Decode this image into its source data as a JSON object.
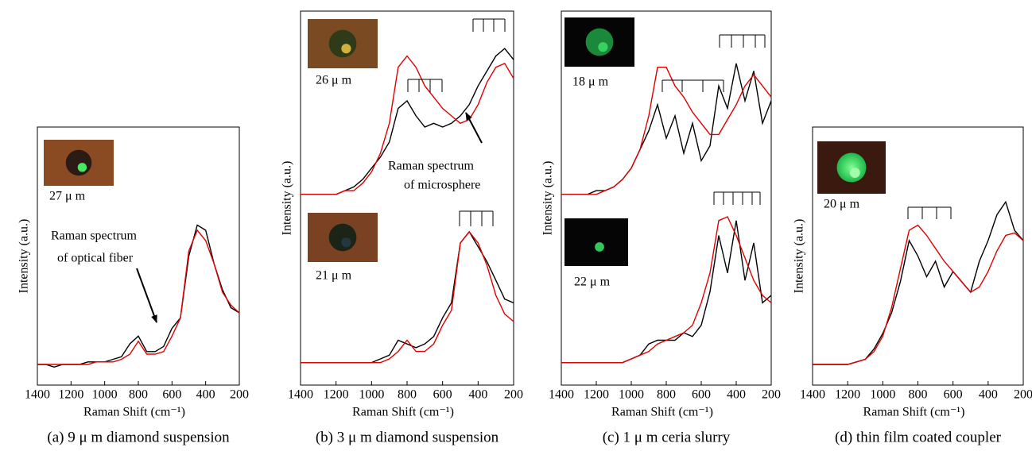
{
  "chart_data": [
    {
      "type": "line",
      "caption": "(a) 9 μ m diamond suspension",
      "xlabel": "Raman Shift (cm⁻¹)",
      "ylabel": "Intensity (a.u.)",
      "xlim": [
        1400,
        200
      ],
      "xticks": [
        1400,
        1200,
        1000,
        800,
        600,
        400,
        200
      ],
      "ylim": [
        0,
        100
      ],
      "x": [
        1400,
        1350,
        1300,
        1250,
        1200,
        1150,
        1100,
        1050,
        1000,
        950,
        900,
        850,
        800,
        750,
        700,
        650,
        600,
        550,
        500,
        450,
        400,
        350,
        300,
        250,
        200
      ],
      "series": [
        {
          "color": "#000000",
          "values": [
            8,
            8,
            7,
            8,
            8,
            8,
            9,
            9,
            9,
            10,
            11,
            16,
            19,
            13,
            13,
            15,
            22,
            26,
            50,
            62,
            60,
            47,
            37,
            30,
            28
          ]
        },
        {
          "color": "#e00000",
          "values": [
            8,
            8,
            8,
            8,
            8,
            8,
            8,
            9,
            9,
            9,
            10,
            12,
            17,
            12,
            12,
            13,
            19,
            26,
            52,
            60,
            56,
            47,
            36,
            31,
            28
          ]
        }
      ],
      "insets": [
        "27 μ m"
      ],
      "annotations": [
        "Raman spectrum",
        "of optical fiber"
      ]
    },
    {
      "type": "line",
      "caption": "(b) 3 μ m diamond suspension",
      "xlabel": "Raman Shift (cm⁻¹)",
      "ylabel": "Intensity (a.u.)",
      "xlim": [
        1400,
        200
      ],
      "xticks": [
        1400,
        1200,
        1000,
        800,
        600,
        400,
        200
      ],
      "ylim": [
        0,
        100
      ],
      "x": [
        1400,
        1350,
        1300,
        1250,
        1200,
        1150,
        1100,
        1050,
        1000,
        950,
        900,
        850,
        800,
        750,
        700,
        650,
        600,
        550,
        500,
        450,
        400,
        350,
        300,
        250,
        200
      ],
      "series": [
        {
          "color": "#000000",
          "values": [
            51,
            51,
            51,
            51,
            51,
            52,
            53,
            55,
            58,
            61,
            65,
            74,
            76,
            72,
            69,
            70,
            69,
            70,
            72,
            75,
            80,
            84,
            88,
            90,
            87
          ]
        },
        {
          "color": "#e00000",
          "values": [
            51,
            51,
            51,
            51,
            51,
            52,
            52,
            54,
            57,
            62,
            70,
            85,
            88,
            85,
            80,
            77,
            74,
            72,
            70,
            71,
            75,
            81,
            85,
            86,
            82
          ]
        },
        {
          "color": "#000000",
          "values": [
            6,
            6,
            6,
            6,
            6,
            6,
            6,
            6,
            6,
            7,
            8,
            12,
            11,
            10,
            11,
            13,
            18,
            22,
            38,
            41,
            37,
            33,
            28,
            23,
            22
          ]
        },
        {
          "color": "#e00000",
          "values": [
            6,
            6,
            6,
            6,
            6,
            6,
            6,
            6,
            6,
            6,
            7,
            9,
            12,
            9,
            9,
            11,
            16,
            20,
            38,
            41,
            38,
            32,
            24,
            19,
            17
          ]
        }
      ],
      "insets": [
        "26 μ m",
        "21 μ m"
      ],
      "annotations": [
        "Raman  spectrum",
        "of microsphere"
      ]
    },
    {
      "type": "line",
      "caption": "(c)  1 μ m ceria slurry",
      "xlabel": "Raman Shift (cm⁻¹)",
      "ylabel": "Intensity (a.u.)",
      "xlim": [
        1400,
        200
      ],
      "xticks": [
        1400,
        1200,
        1000,
        800,
        600,
        400,
        200
      ],
      "ylim": [
        0,
        100
      ],
      "x": [
        1400,
        1350,
        1300,
        1250,
        1200,
        1150,
        1100,
        1050,
        1000,
        950,
        900,
        850,
        800,
        750,
        700,
        650,
        600,
        550,
        500,
        450,
        400,
        350,
        300,
        250,
        200
      ],
      "series": [
        {
          "color": "#000000",
          "values": [
            51,
            51,
            51,
            51,
            52,
            52,
            53,
            55,
            58,
            63,
            68,
            75,
            66,
            72,
            62,
            70,
            60,
            64,
            80,
            74,
            86,
            76,
            84,
            70,
            76
          ]
        },
        {
          "color": "#e00000",
          "values": [
            51,
            51,
            51,
            51,
            51,
            52,
            53,
            55,
            58,
            63,
            72,
            85,
            85,
            80,
            77,
            73,
            70,
            67,
            67,
            71,
            75,
            80,
            83,
            80,
            77
          ]
        },
        {
          "color": "#000000",
          "values": [
            6,
            6,
            6,
            6,
            6,
            6,
            6,
            6,
            7,
            8,
            11,
            12,
            12,
            12,
            14,
            13,
            16,
            25,
            40,
            30,
            44,
            28,
            38,
            22,
            24
          ]
        },
        {
          "color": "#e00000",
          "values": [
            6,
            6,
            6,
            6,
            6,
            6,
            6,
            6,
            7,
            8,
            9,
            11,
            12,
            13,
            14,
            16,
            22,
            30,
            44,
            45,
            40,
            34,
            28,
            24,
            22
          ]
        }
      ],
      "insets": [
        "18 μ m",
        "22 μ m"
      ],
      "annotations": []
    },
    {
      "type": "line",
      "caption": "(d) thin film coated coupler",
      "xlabel": "Raman Shift (cm⁻¹)",
      "ylabel": "Intensity (a.u.)",
      "xlim": [
        1400,
        200
      ],
      "xticks": [
        1400,
        1200,
        1000,
        800,
        600,
        400,
        200
      ],
      "ylim": [
        0,
        100
      ],
      "x": [
        1400,
        1350,
        1300,
        1250,
        1200,
        1150,
        1100,
        1050,
        1000,
        950,
        900,
        850,
        800,
        750,
        700,
        650,
        600,
        550,
        500,
        450,
        400,
        350,
        300,
        250,
        200
      ],
      "series": [
        {
          "color": "#000000",
          "values": [
            8,
            8,
            8,
            8,
            8,
            9,
            10,
            14,
            20,
            28,
            40,
            56,
            50,
            42,
            48,
            38,
            44,
            40,
            36,
            48,
            56,
            66,
            71,
            60,
            56
          ]
        },
        {
          "color": "#e00000",
          "values": [
            8,
            8,
            8,
            8,
            8,
            9,
            10,
            13,
            19,
            30,
            45,
            60,
            62,
            58,
            53,
            48,
            44,
            40,
            36,
            38,
            44,
            52,
            58,
            59,
            56
          ]
        }
      ],
      "insets": [
        "20 μ m"
      ],
      "annotations": []
    }
  ]
}
